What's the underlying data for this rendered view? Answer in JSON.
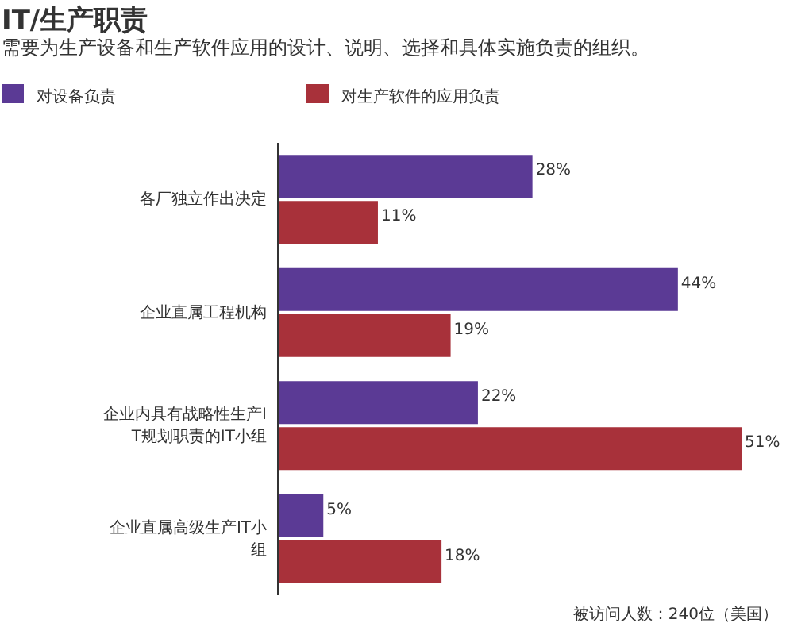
{
  "chart_data": {
    "type": "bar",
    "orientation": "horizontal",
    "title": "IT/生产职责",
    "subtitle": "需要为生产设备和生产软件应用的设计、说明、选择和具体实施负责的组织。",
    "categories": [
      "各厂独立作出决定",
      "企业直属工程机构",
      "企业内具有战略性生产IT规划职责的IT小组",
      "企业直属高级生产IT小组"
    ],
    "series": [
      {
        "name": "对设备负责",
        "color": "#5b3a95",
        "values": [
          28,
          44,
          22,
          5
        ],
        "value_labels": [
          "28%",
          "44%",
          "22%",
          "5%"
        ]
      },
      {
        "name": "对生产软件的应用负责",
        "color": "#a8313a",
        "values": [
          11,
          19,
          51,
          18
        ],
        "value_labels": [
          "11%",
          "19%",
          "51%",
          "18%"
        ]
      }
    ],
    "legend": "top",
    "annotations": [
      "被访问人数：240位（美国）"
    ]
  }
}
